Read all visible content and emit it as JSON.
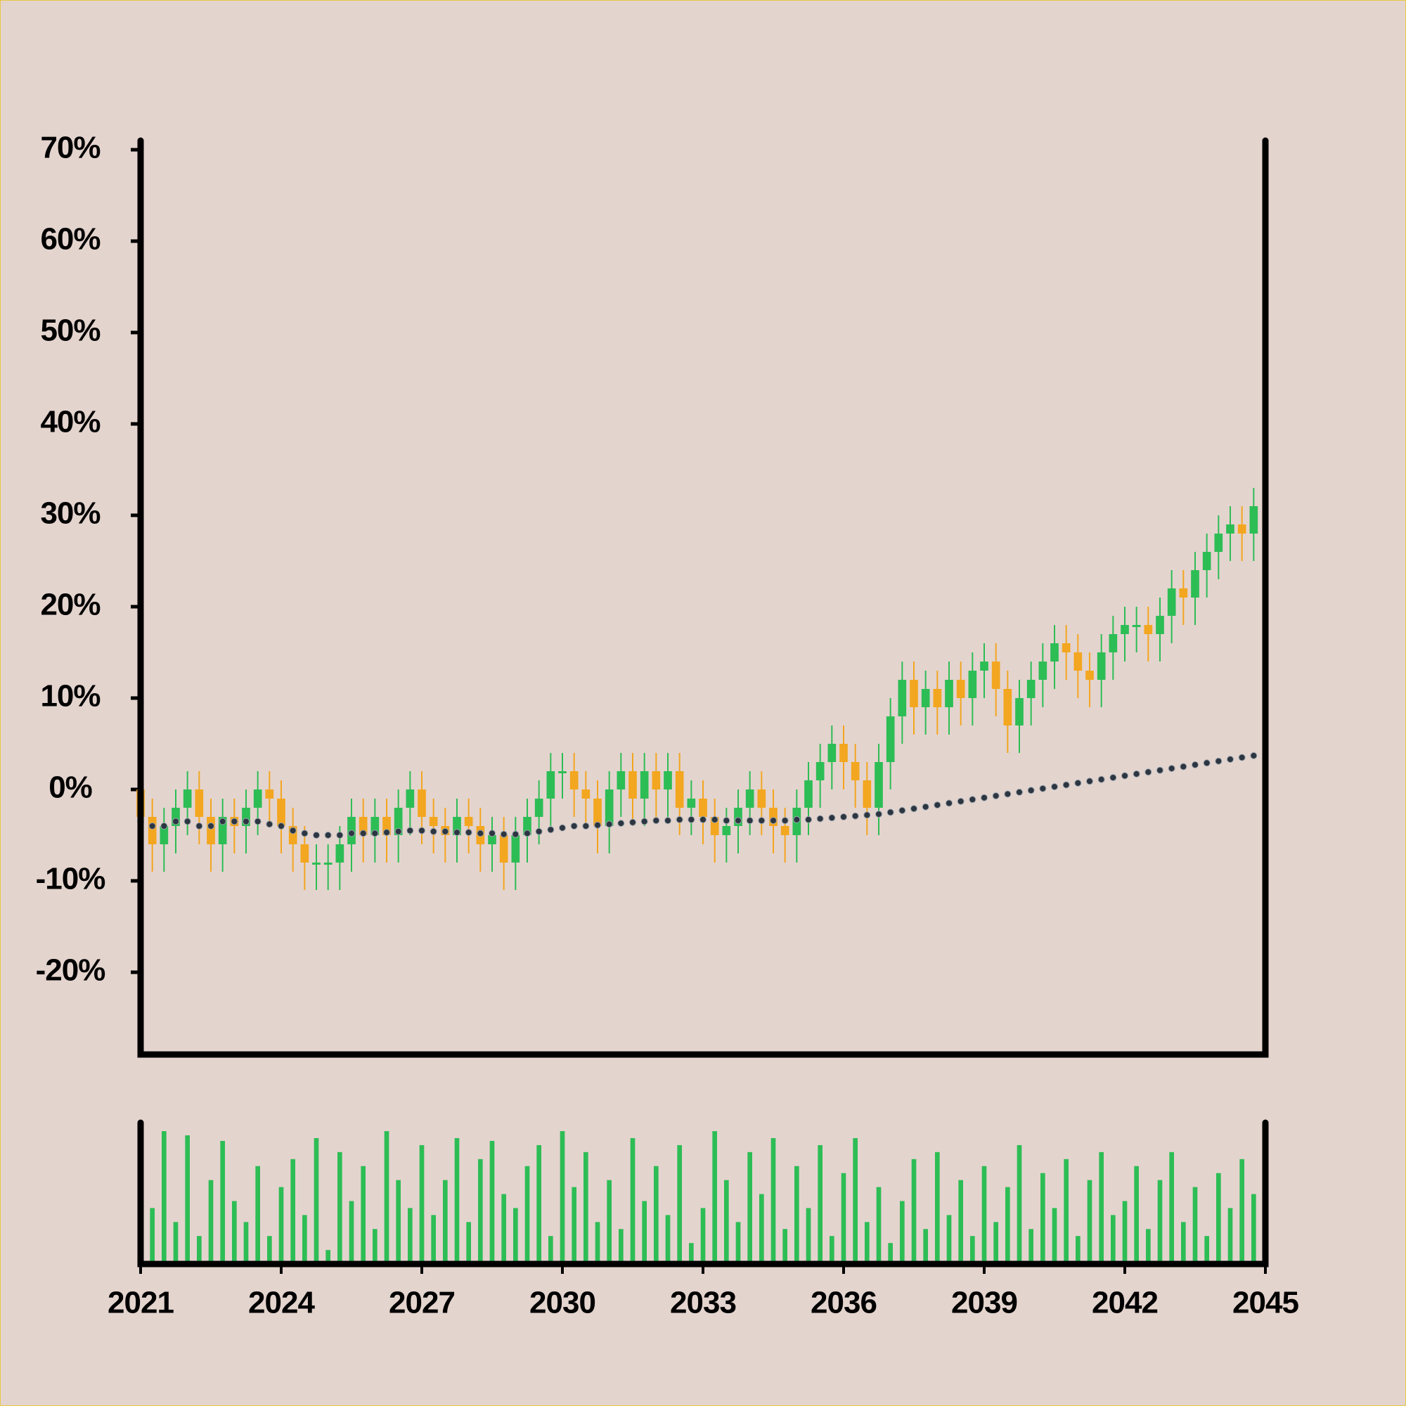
{
  "chart_data": {
    "type": "candlestick",
    "x": [
      2021,
      2021.25,
      2021.5,
      2021.75,
      2022,
      2022.25,
      2022.5,
      2022.75,
      2023,
      2023.25,
      2023.5,
      2023.75,
      2024,
      2024.25,
      2024.5,
      2024.75,
      2025,
      2025.25,
      2025.5,
      2025.75,
      2026,
      2026.25,
      2026.5,
      2026.75,
      2027,
      2027.25,
      2027.5,
      2027.75,
      2028,
      2028.25,
      2028.5,
      2028.75,
      2029,
      2029.25,
      2029.5,
      2029.75,
      2030,
      2030.25,
      2030.5,
      2030.75,
      2031,
      2031.25,
      2031.5,
      2031.75,
      2032,
      2032.25,
      2032.5,
      2032.75,
      2033,
      2033.25,
      2033.5,
      2033.75,
      2034,
      2034.25,
      2034.5,
      2034.75,
      2035,
      2035.25,
      2035.5,
      2035.75,
      2036,
      2036.25,
      2036.5,
      2036.75,
      2037,
      2037.25,
      2037.5,
      2037.75,
      2038,
      2038.25,
      2038.5,
      2038.75,
      2039,
      2039.25,
      2039.5,
      2039.75,
      2040,
      2040.25,
      2040.5,
      2040.75,
      2041,
      2041.25,
      2041.5,
      2041.75,
      2042,
      2042.25,
      2042.5,
      2042.75,
      2043,
      2043.25,
      2043.5,
      2043.75,
      2044,
      2044.25,
      2044.5,
      2044.75
    ],
    "open": [
      0,
      -3,
      -6,
      -4,
      -2,
      0,
      -3,
      -6,
      -3,
      -4,
      -2,
      0,
      -1,
      -4,
      -6,
      -8,
      -8,
      -8,
      -6,
      -3,
      -5,
      -3,
      -5,
      -2,
      0,
      -3,
      -4,
      -5,
      -3,
      -4,
      -6,
      -5,
      -8,
      -5,
      -3,
      -1,
      2,
      2,
      0,
      -1,
      -4,
      0,
      2,
      -1,
      2,
      0,
      2,
      -2,
      -1,
      -3,
      -5,
      -4,
      -2,
      0,
      -2,
      -4,
      -5,
      -2,
      1,
      3,
      5,
      3,
      1,
      -2,
      3,
      8,
      12,
      9,
      11,
      9,
      12,
      10,
      13,
      14,
      11,
      7,
      10,
      12,
      14,
      16,
      15,
      13,
      12,
      15,
      17,
      18,
      18,
      17,
      19,
      22,
      21,
      24,
      26,
      28,
      29,
      28
    ],
    "high": [
      2,
      -1,
      -2,
      0,
      2,
      2,
      -1,
      -1,
      -1,
      0,
      2,
      2,
      1,
      -2,
      -4,
      -6,
      -6,
      -4,
      -1,
      -1,
      -1,
      -1,
      0,
      2,
      2,
      -1,
      -2,
      -1,
      -1,
      -2,
      -3,
      -3,
      -3,
      -1,
      1,
      4,
      4,
      4,
      2,
      1,
      2,
      4,
      4,
      4,
      4,
      4,
      4,
      1,
      1,
      -1,
      -2,
      0,
      2,
      2,
      0,
      -2,
      0,
      3,
      5,
      7,
      7,
      5,
      3,
      5,
      10,
      14,
      14,
      13,
      13,
      14,
      14,
      15,
      16,
      16,
      13,
      12,
      14,
      16,
      18,
      18,
      17,
      15,
      17,
      19,
      20,
      20,
      20,
      21,
      24,
      24,
      26,
      28,
      30,
      31,
      31,
      33
    ],
    "low": [
      -6,
      -9,
      -9,
      -7,
      -5,
      -6,
      -9,
      -9,
      -7,
      -7,
      -5,
      -4,
      -7,
      -9,
      -11,
      -11,
      -11,
      -11,
      -9,
      -8,
      -8,
      -8,
      -8,
      -5,
      -6,
      -7,
      -8,
      -8,
      -7,
      -9,
      -9,
      -11,
      -11,
      -8,
      -6,
      -4,
      -1,
      -3,
      -4,
      -7,
      -7,
      -3,
      -4,
      -4,
      -3,
      -3,
      -5,
      -5,
      -6,
      -8,
      -8,
      -7,
      -5,
      -5,
      -7,
      -8,
      -8,
      -5,
      -2,
      0,
      0,
      -2,
      -5,
      -5,
      0,
      5,
      6,
      6,
      6,
      6,
      7,
      7,
      10,
      8,
      4,
      4,
      7,
      9,
      11,
      12,
      10,
      9,
      9,
      12,
      14,
      15,
      14,
      14,
      16,
      18,
      18,
      21,
      23,
      25,
      25,
      25
    ],
    "close": [
      -3,
      -6,
      -4,
      -2,
      0,
      -3,
      -6,
      -3,
      -4,
      -2,
      0,
      -1,
      -4,
      -6,
      -8,
      -8,
      -8,
      -6,
      -3,
      -5,
      -3,
      -5,
      -2,
      0,
      -3,
      -4,
      -5,
      -3,
      -4,
      -6,
      -5,
      -8,
      -5,
      -3,
      -1,
      2,
      2,
      0,
      -1,
      -4,
      0,
      2,
      -1,
      2,
      0,
      2,
      -2,
      -1,
      -3,
      -5,
      -4,
      -2,
      0,
      -2,
      -4,
      -5,
      -2,
      1,
      3,
      5,
      3,
      1,
      -2,
      3,
      8,
      12,
      9,
      11,
      9,
      12,
      10,
      13,
      14,
      11,
      7,
      10,
      12,
      14,
      16,
      15,
      13,
      12,
      15,
      17,
      18,
      18,
      17,
      19,
      22,
      21,
      24,
      26,
      28,
      29,
      28,
      31
    ],
    "up_color": "#2dbd55",
    "down_color": "#f3a61f",
    "overlay": {
      "type": "line",
      "color": "#2c3540",
      "values": [
        -3.5,
        -4,
        -4,
        -3.5,
        -3.5,
        -4,
        -4,
        -3.5,
        -3.5,
        -3.5,
        -3.5,
        -3.8,
        -4,
        -4.5,
        -4.8,
        -5,
        -5,
        -5,
        -4.8,
        -4.8,
        -4.8,
        -4.7,
        -4.6,
        -4.5,
        -4.5,
        -4.6,
        -4.6,
        -4.7,
        -4.7,
        -4.8,
        -4.8,
        -4.9,
        -4.9,
        -4.8,
        -4.6,
        -4.4,
        -4.2,
        -4,
        -4,
        -3.9,
        -3.8,
        -3.7,
        -3.6,
        -3.5,
        -3.4,
        -3.4,
        -3.3,
        -3.3,
        -3.3,
        -3.3,
        -3.4,
        -3.4,
        -3.4,
        -3.4,
        -3.4,
        -3.4,
        -3.3,
        -3.3,
        -3.2,
        -3.1,
        -3,
        -2.9,
        -2.8,
        -2.7,
        -2.5,
        -2.3,
        -2.1,
        -1.9,
        -1.7,
        -1.5,
        -1.3,
        -1.1,
        -0.9,
        -0.7,
        -0.5,
        -0.3,
        -0.1,
        0.1,
        0.3,
        0.5,
        0.7,
        0.9,
        1.1,
        1.3,
        1.5,
        1.7,
        1.9,
        2.1,
        2.3,
        2.5,
        2.7,
        2.9,
        3.1,
        3.3,
        3.5,
        3.7
      ]
    },
    "volume": {
      "type": "bar",
      "color": "#2dbd55",
      "values": [
        85,
        40,
        95,
        30,
        92,
        20,
        60,
        88,
        45,
        30,
        70,
        20,
        55,
        75,
        35,
        90,
        10,
        80,
        45,
        70,
        25,
        95,
        60,
        40,
        85,
        35,
        60,
        90,
        30,
        75,
        88,
        50,
        40,
        70,
        85,
        20,
        95,
        55,
        80,
        30,
        60,
        25,
        90,
        45,
        70,
        35,
        85,
        15,
        40,
        95,
        60,
        30,
        80,
        50,
        90,
        25,
        70,
        40,
        85,
        20,
        65,
        90,
        30,
        55,
        15,
        45,
        75,
        25,
        80,
        35,
        60,
        20,
        70,
        30,
        55,
        85,
        25,
        65,
        40,
        75,
        20,
        60,
        80,
        35,
        45,
        70,
        25,
        60,
        80,
        30,
        55,
        20,
        65,
        40,
        75,
        50
      ]
    },
    "xlim": [
      2021,
      2045
    ],
    "xticks": [
      2021,
      2024,
      2027,
      2030,
      2033,
      2036,
      2039,
      2042,
      2045
    ],
    "ylim": [
      -29,
      71
    ],
    "yticks": [
      {
        "value": -20,
        "label": "-20%"
      },
      {
        "value": -10,
        "label": "-10%"
      },
      {
        "value": 0,
        "label": "0%"
      },
      {
        "value": 10,
        "label": "10%"
      },
      {
        "value": 20,
        "label": "20%"
      },
      {
        "value": 30,
        "label": "30%"
      },
      {
        "value": 40,
        "label": "40%"
      },
      {
        "value": 50,
        "label": "50%"
      },
      {
        "value": 60,
        "label": "60%"
      },
      {
        "value": 70,
        "label": "70%"
      }
    ]
  }
}
